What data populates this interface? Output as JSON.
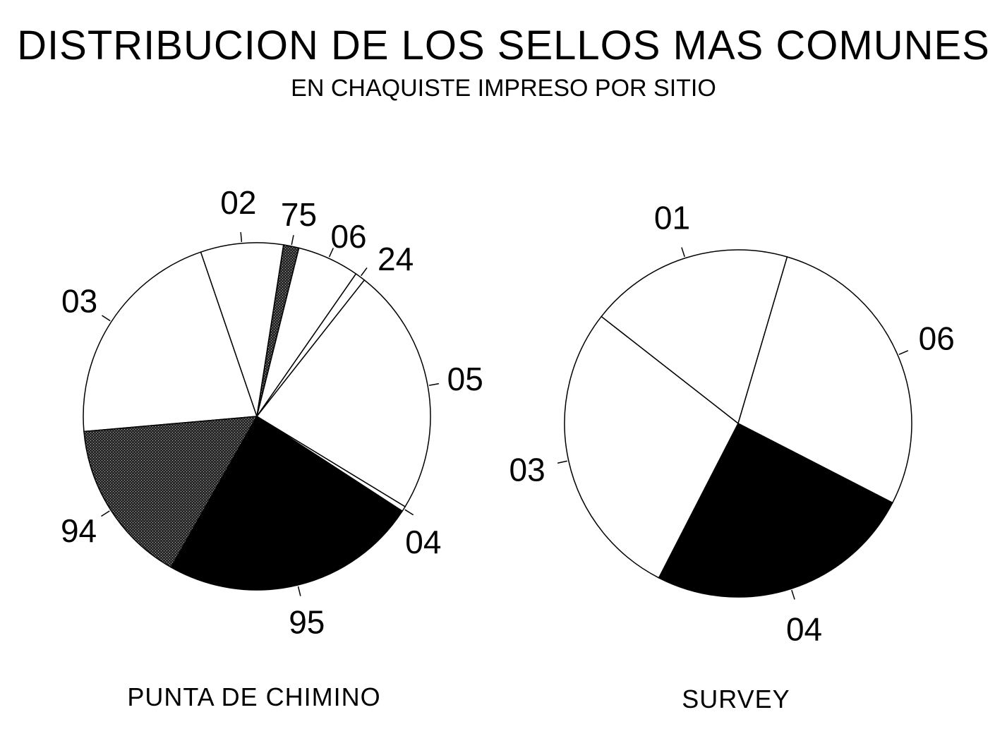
{
  "title": "DISTRIBUCION DE LOS SELLOS MAS COMUNES",
  "subtitle": "EN CHAQUISTE IMPRESO POR SITIO",
  "colors": {
    "white": "#ffffff",
    "black": "#000000",
    "stipple": "#3a3a3a",
    "outline": "#000000"
  },
  "chart_data": [
    {
      "type": "pie",
      "site": "PUNTA DE CHIMINO",
      "slices": [
        {
          "label": "03",
          "value": 22,
          "fill": "white"
        },
        {
          "label": "02",
          "value": 8,
          "fill": "white"
        },
        {
          "label": "75",
          "value": 1.5,
          "fill": "stipple"
        },
        {
          "label": "06",
          "value": 6,
          "fill": "white"
        },
        {
          "label": "24",
          "value": 1,
          "fill": "white"
        },
        {
          "label": "05",
          "value": 24,
          "fill": "white"
        },
        {
          "label": "04",
          "value": 0.5,
          "fill": "white"
        },
        {
          "label": "95",
          "value": 25,
          "fill": "black"
        },
        {
          "label": "94",
          "value": 16,
          "fill": "stipple"
        }
      ]
    },
    {
      "type": "pie",
      "site": "SURVEY",
      "slices": [
        {
          "label": "01",
          "value": 19,
          "fill": "white"
        },
        {
          "label": "06",
          "value": 28,
          "fill": "white"
        },
        {
          "label": "04",
          "value": 25,
          "fill": "black"
        },
        {
          "label": "03",
          "value": 28,
          "fill": "white"
        }
      ]
    }
  ]
}
